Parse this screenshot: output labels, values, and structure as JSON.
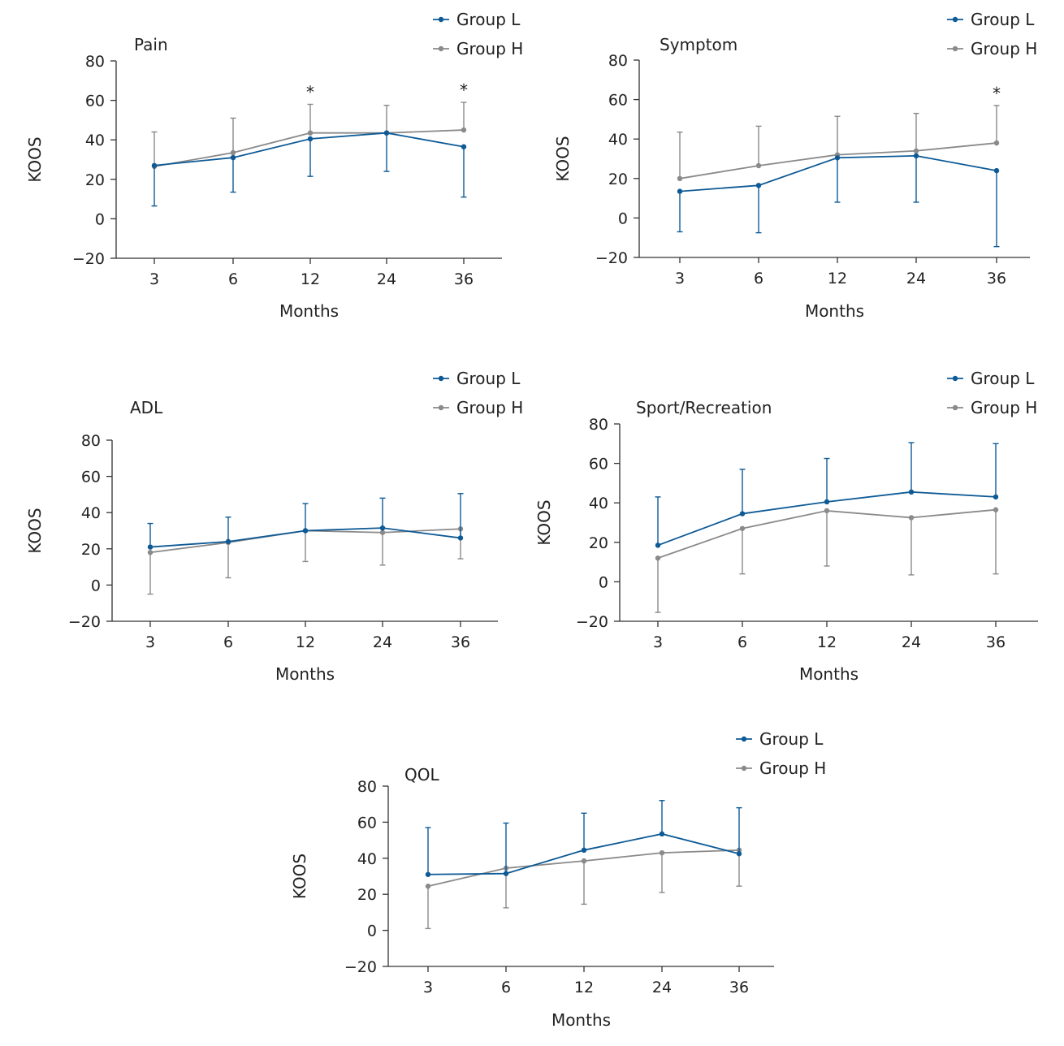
{
  "colors": {
    "group_l": "#0d5a96",
    "group_h": "#8a8a8a",
    "axis": "#333333"
  },
  "chart_data": [
    {
      "type": "line",
      "title": "Pain",
      "xlabel": "Months",
      "ylabel": "KOOS",
      "categories": [
        "3",
        "6",
        "12",
        "24",
        "36"
      ],
      "ylim": [
        -20,
        80
      ],
      "yticks": [
        -20,
        0,
        20,
        40,
        60,
        80
      ],
      "ytick_labels": [
        "−20",
        "0",
        "20",
        "40",
        "60",
        "80"
      ],
      "legend": [
        "Group L",
        "Group H"
      ],
      "significance": [
        "",
        "",
        "*",
        "",
        "*"
      ],
      "series": [
        {
          "name": "Group L",
          "values": [
            27,
            31,
            40.5,
            43.5,
            36.5
          ],
          "err_lower": [
            6.5,
            13.5,
            21.5,
            24,
            11
          ],
          "err_upper": null
        },
        {
          "name": "Group H",
          "values": [
            26.5,
            33.5,
            43.5,
            43.5,
            45
          ],
          "err_lower": null,
          "err_upper": [
            44,
            51,
            58,
            57.5,
            59
          ]
        }
      ]
    },
    {
      "type": "line",
      "title": "Symptom",
      "xlabel": "Months",
      "ylabel": "KOOS",
      "categories": [
        "3",
        "6",
        "12",
        "24",
        "36"
      ],
      "ylim": [
        -20,
        80
      ],
      "yticks": [
        -20,
        0,
        20,
        40,
        60,
        80
      ],
      "ytick_labels": [
        "−20",
        "0",
        "20",
        "40",
        "60",
        "80"
      ],
      "legend": [
        "Group L",
        "Group H"
      ],
      "significance": [
        "",
        "",
        "",
        "",
        "*"
      ],
      "series": [
        {
          "name": "Group L",
          "values": [
            13.5,
            16.5,
            30.5,
            31.5,
            24
          ],
          "err_lower": [
            -7,
            -7.5,
            8,
            8,
            -14.5
          ],
          "err_upper": null
        },
        {
          "name": "Group H",
          "values": [
            20,
            26.5,
            32,
            34,
            38
          ],
          "err_lower": null,
          "err_upper": [
            43.5,
            46.5,
            51.5,
            53,
            57
          ]
        }
      ]
    },
    {
      "type": "line",
      "title": "ADL",
      "xlabel": "Months",
      "ylabel": "KOOS",
      "categories": [
        "3",
        "6",
        "12",
        "24",
        "36"
      ],
      "ylim": [
        -20,
        80
      ],
      "yticks": [
        -20,
        0,
        20,
        40,
        60,
        80
      ],
      "ytick_labels": [
        "−20",
        "0",
        "20",
        "40",
        "60",
        "80"
      ],
      "legend": [
        "Group L",
        "Group H"
      ],
      "significance": [
        "",
        "",
        "",
        "",
        ""
      ],
      "series": [
        {
          "name": "Group L",
          "values": [
            21,
            24,
            30,
            31.5,
            26
          ],
          "err_lower": null,
          "err_upper": [
            34,
            37.5,
            45,
            48,
            50.5
          ]
        },
        {
          "name": "Group H",
          "values": [
            18,
            23.5,
            30,
            29,
            31
          ],
          "err_lower": [
            -5,
            4,
            13,
            11,
            14.5
          ],
          "err_upper": null
        }
      ]
    },
    {
      "type": "line",
      "title": "Sport/Recreation",
      "xlabel": "Months",
      "ylabel": "KOOS",
      "categories": [
        "3",
        "6",
        "12",
        "24",
        "36"
      ],
      "ylim": [
        -20,
        80
      ],
      "yticks": [
        -20,
        0,
        20,
        40,
        60,
        80
      ],
      "ytick_labels": [
        "−20",
        "0",
        "20",
        "40",
        "60",
        "80"
      ],
      "legend": [
        "Group L",
        "Group H"
      ],
      "significance": [
        "",
        "",
        "",
        "",
        ""
      ],
      "series": [
        {
          "name": "Group L",
          "values": [
            18.5,
            34.5,
            40.5,
            45.5,
            43
          ],
          "err_lower": null,
          "err_upper": [
            43,
            57,
            62.5,
            70.5,
            70
          ]
        },
        {
          "name": "Group H",
          "values": [
            12,
            27,
            36,
            32.5,
            36.5
          ],
          "err_lower": [
            -15.5,
            4,
            8,
            3.5,
            4
          ],
          "err_upper": null
        }
      ]
    },
    {
      "type": "line",
      "title": "QOL",
      "xlabel": "Months",
      "ylabel": "KOOS",
      "categories": [
        "3",
        "6",
        "12",
        "24",
        "36"
      ],
      "ylim": [
        -20,
        80
      ],
      "yticks": [
        -20,
        0,
        20,
        40,
        60,
        80
      ],
      "ytick_labels": [
        "−20",
        "0",
        "20",
        "40",
        "60",
        "80"
      ],
      "legend": [
        "Group L",
        "Group H"
      ],
      "significance": [
        "",
        "",
        "",
        "",
        ""
      ],
      "series": [
        {
          "name": "Group L",
          "values": [
            31,
            31.5,
            44.5,
            53.5,
            42.5
          ],
          "err_lower": null,
          "err_upper": [
            57,
            59.5,
            65,
            72,
            68
          ]
        },
        {
          "name": "Group H",
          "values": [
            24.5,
            34.5,
            38.5,
            43,
            44.5
          ],
          "err_lower": [
            1,
            12.5,
            14.5,
            21,
            24.5
          ],
          "err_upper": null
        }
      ]
    }
  ]
}
